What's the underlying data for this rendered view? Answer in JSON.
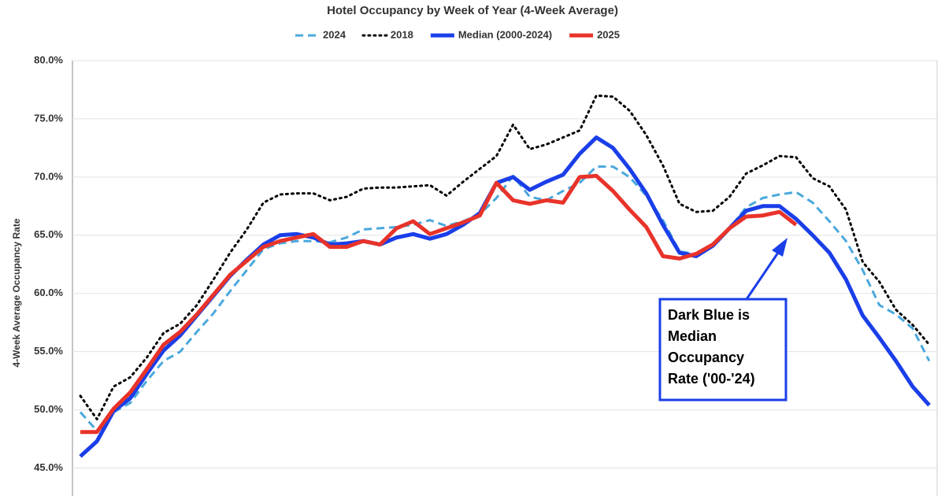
{
  "chart_data": {
    "type": "line",
    "title": "Hotel Occupancy by Week of Year (4-Week Average)",
    "y_label": "4-Week Average Occupancy Rate",
    "ylim": [
      42.6,
      80
    ],
    "yticks": [
      {
        "value": 45,
        "label": "45.0%"
      },
      {
        "value": 50,
        "label": "50.0%"
      },
      {
        "value": 55,
        "label": "55.0%"
      },
      {
        "value": 60,
        "label": "60.0%"
      },
      {
        "value": 65,
        "label": "65.0%"
      },
      {
        "value": 70,
        "label": "70.0%"
      },
      {
        "value": 75,
        "label": "75.0%"
      },
      {
        "value": 80,
        "label": "80.0%"
      }
    ],
    "grid": true,
    "series": [
      {
        "name": "2024",
        "color": "#4aa8dc",
        "dash": "dashed",
        "values": [
          49.8,
          48.2,
          49.8,
          50.6,
          52.5,
          54.2,
          55.0,
          56.7,
          58.3,
          60.2,
          62.0,
          63.8,
          64.3,
          64.5,
          64.5,
          64.4,
          64.8,
          65.5,
          65.6,
          65.7,
          65.9,
          66.3,
          65.8,
          66.2,
          66.8,
          68.2,
          70.1,
          68.3,
          68.0,
          68.8,
          69.5,
          70.9,
          70.9,
          70.0,
          68.4,
          66.3,
          63.6,
          63.4,
          64.1,
          65.6,
          67.4,
          68.2,
          68.5,
          68.7,
          67.8,
          66.2,
          64.5,
          62.0,
          59.0,
          58.2,
          57.0,
          54.2
        ]
      },
      {
        "name": "2018",
        "color": "#000000",
        "dash": "dotted",
        "values": [
          51.2,
          49.2,
          52.0,
          52.8,
          54.5,
          56.6,
          57.4,
          59.0,
          61.2,
          63.5,
          65.5,
          67.8,
          68.5,
          68.6,
          68.6,
          68.0,
          68.3,
          69.0,
          69.1,
          69.1,
          69.2,
          69.3,
          68.4,
          69.6,
          70.7,
          71.8,
          74.5,
          72.4,
          72.8,
          73.4,
          74.0,
          77.0,
          76.9,
          75.7,
          73.6,
          71.0,
          67.7,
          67.0,
          67.1,
          68.3,
          70.3,
          71.0,
          71.8,
          71.7,
          69.9,
          69.2,
          67.2,
          62.7,
          61.0,
          58.6,
          57.3,
          55.6
        ]
      },
      {
        "name": "Median (2000-2024)",
        "color": "#1a3ee8",
        "dash": "solid",
        "values": [
          46.0,
          47.3,
          49.9,
          51.0,
          53.1,
          55.1,
          56.4,
          58.1,
          59.8,
          61.5,
          62.9,
          64.2,
          65.0,
          65.1,
          64.8,
          64.2,
          64.3,
          64.5,
          64.2,
          64.8,
          65.1,
          64.7,
          65.1,
          65.9,
          66.9,
          69.5,
          70.0,
          68.9,
          69.6,
          70.2,
          72.0,
          73.4,
          72.5,
          70.7,
          68.6,
          65.9,
          63.5,
          63.2,
          64.1,
          65.6,
          67.1,
          67.5,
          67.5,
          66.4,
          65.0,
          63.5,
          61.2,
          58.1,
          56.2,
          54.2,
          52.0,
          50.4
        ]
      },
      {
        "name": "2025",
        "color": "#e8332a",
        "dash": "solid",
        "values": [
          48.1,
          48.1,
          50.1,
          51.5,
          53.5,
          55.6,
          56.7,
          58.2,
          59.9,
          61.6,
          62.8,
          64.0,
          64.5,
          64.8,
          65.1,
          64.0,
          64.0,
          64.5,
          64.2,
          65.6,
          66.2,
          65.1,
          65.6,
          66.1,
          66.7,
          69.5,
          68.0,
          67.7,
          68.0,
          67.8,
          70.0,
          70.1,
          68.8,
          67.2,
          65.7,
          63.2,
          63.0,
          63.4,
          64.2,
          65.6,
          66.6,
          66.7,
          67.0,
          65.9,
          null,
          null,
          null,
          null,
          null,
          null,
          null,
          null
        ]
      }
    ],
    "annotation": [
      "Dark Blue is",
      "Median",
      "Occupancy",
      "Rate ('00-'24)"
    ]
  }
}
